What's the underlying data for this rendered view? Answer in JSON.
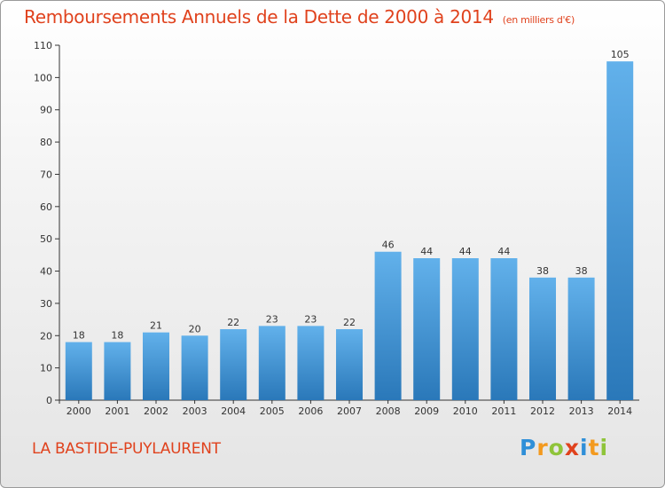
{
  "title": "Remboursements Annuels de la Dette de 2000 à 2014",
  "unit": "(en milliers d'€)",
  "commune": "LA BASTIDE-PUYLAURENT",
  "brand": {
    "name": "Proxiti",
    "letters": [
      "P",
      "r",
      "o",
      "x",
      "i",
      "t",
      "i"
    ]
  },
  "colors": {
    "title": "#e0421d",
    "bar_top": "#62b1eb",
    "bar_bottom": "#2a78b9",
    "axis": "#333333"
  },
  "chart_data": {
    "type": "bar",
    "title": "Remboursements Annuels de la Dette de 2000 à 2014",
    "xlabel": "",
    "ylabel": "",
    "categories": [
      "2000",
      "2001",
      "2002",
      "2003",
      "2004",
      "2005",
      "2006",
      "2007",
      "2008",
      "2009",
      "2010",
      "2011",
      "2012",
      "2013",
      "2014"
    ],
    "values": [
      18,
      18,
      21,
      20,
      22,
      23,
      23,
      22,
      46,
      44,
      44,
      44,
      38,
      38,
      105
    ],
    "ylim": [
      0,
      110
    ],
    "yticks": [
      0,
      10,
      20,
      30,
      40,
      50,
      60,
      70,
      80,
      90,
      100,
      110
    ],
    "grid": false,
    "legend": "none"
  }
}
